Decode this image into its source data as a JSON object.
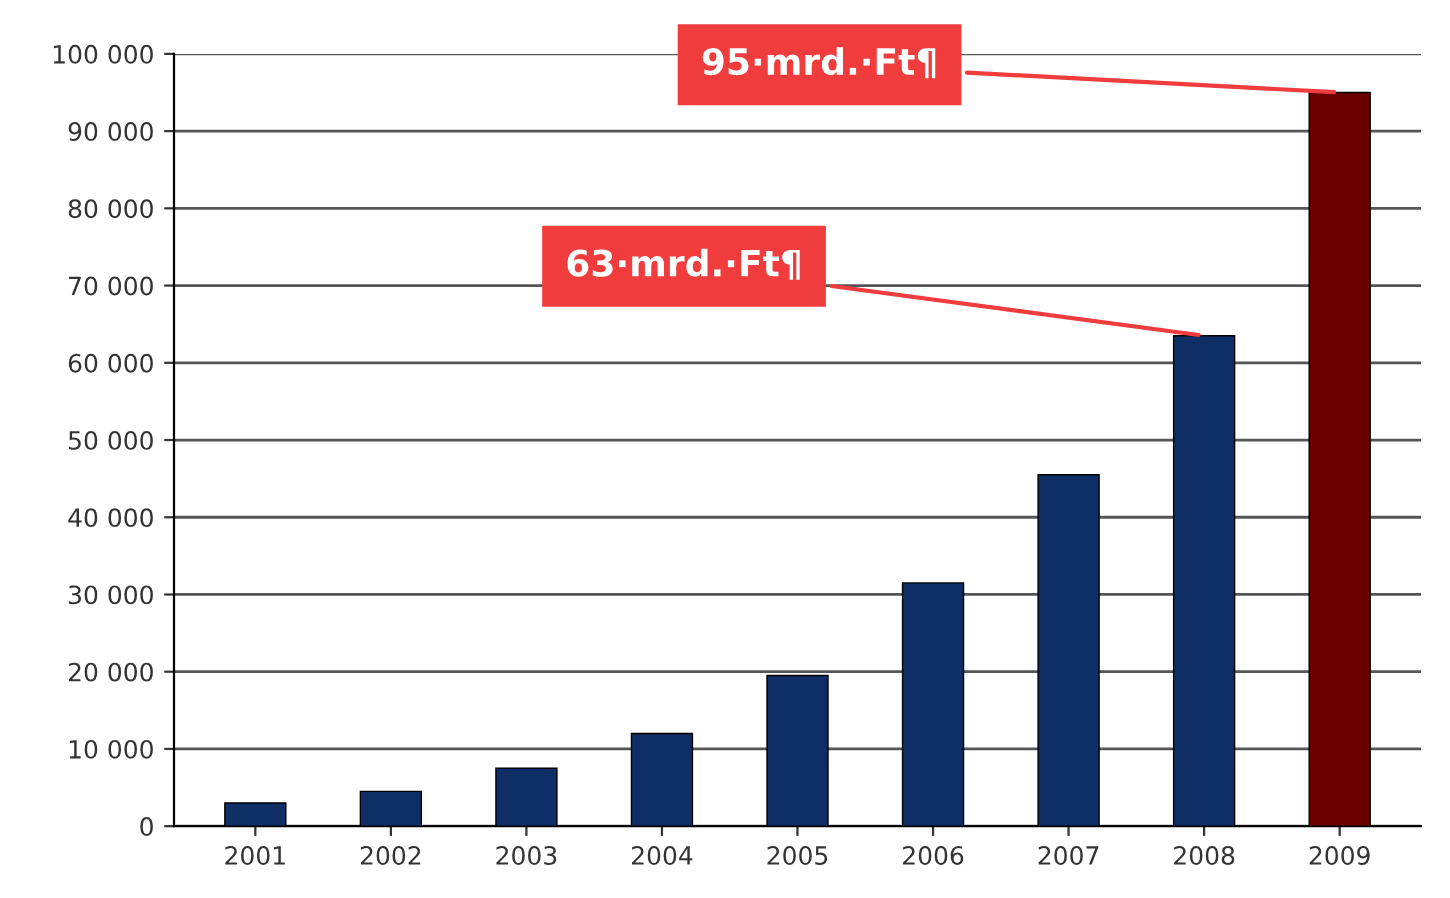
{
  "chart_data": {
    "type": "bar",
    "categories": [
      "2001",
      "2002",
      "2003",
      "2004",
      "2005",
      "2006",
      "2007",
      "2008",
      "2009"
    ],
    "values": [
      3000,
      4500,
      7500,
      12000,
      19500,
      31500,
      45500,
      63500,
      95000
    ],
    "colors": [
      "#0f2e66",
      "#0f2e66",
      "#0f2e66",
      "#0f2e66",
      "#0f2e66",
      "#0f2e66",
      "#0f2e66",
      "#0f2e66",
      "#6b0000"
    ],
    "ylim": [
      0,
      100000
    ],
    "yticks": [
      {
        "value": 0,
        "label": "0"
      },
      {
        "value": 10000,
        "label": "10 000"
      },
      {
        "value": 20000,
        "label": "20 000"
      },
      {
        "value": 30000,
        "label": "30 000"
      },
      {
        "value": 40000,
        "label": "40 000"
      },
      {
        "value": 50000,
        "label": "50 000"
      },
      {
        "value": 60000,
        "label": "60 000"
      },
      {
        "value": 70000,
        "label": "70 000"
      },
      {
        "value": 80000,
        "label": "80 000"
      },
      {
        "value": 90000,
        "label": "90 000"
      },
      {
        "value": 100000,
        "label": "100 000"
      }
    ],
    "grid": "y",
    "annotations": [
      {
        "text": "95·mrd.·Ft¶",
        "x": "2009",
        "y": 95000
      },
      {
        "text": "63·mrd.·Ft¶",
        "x": "2008",
        "y": 63500
      }
    ]
  }
}
